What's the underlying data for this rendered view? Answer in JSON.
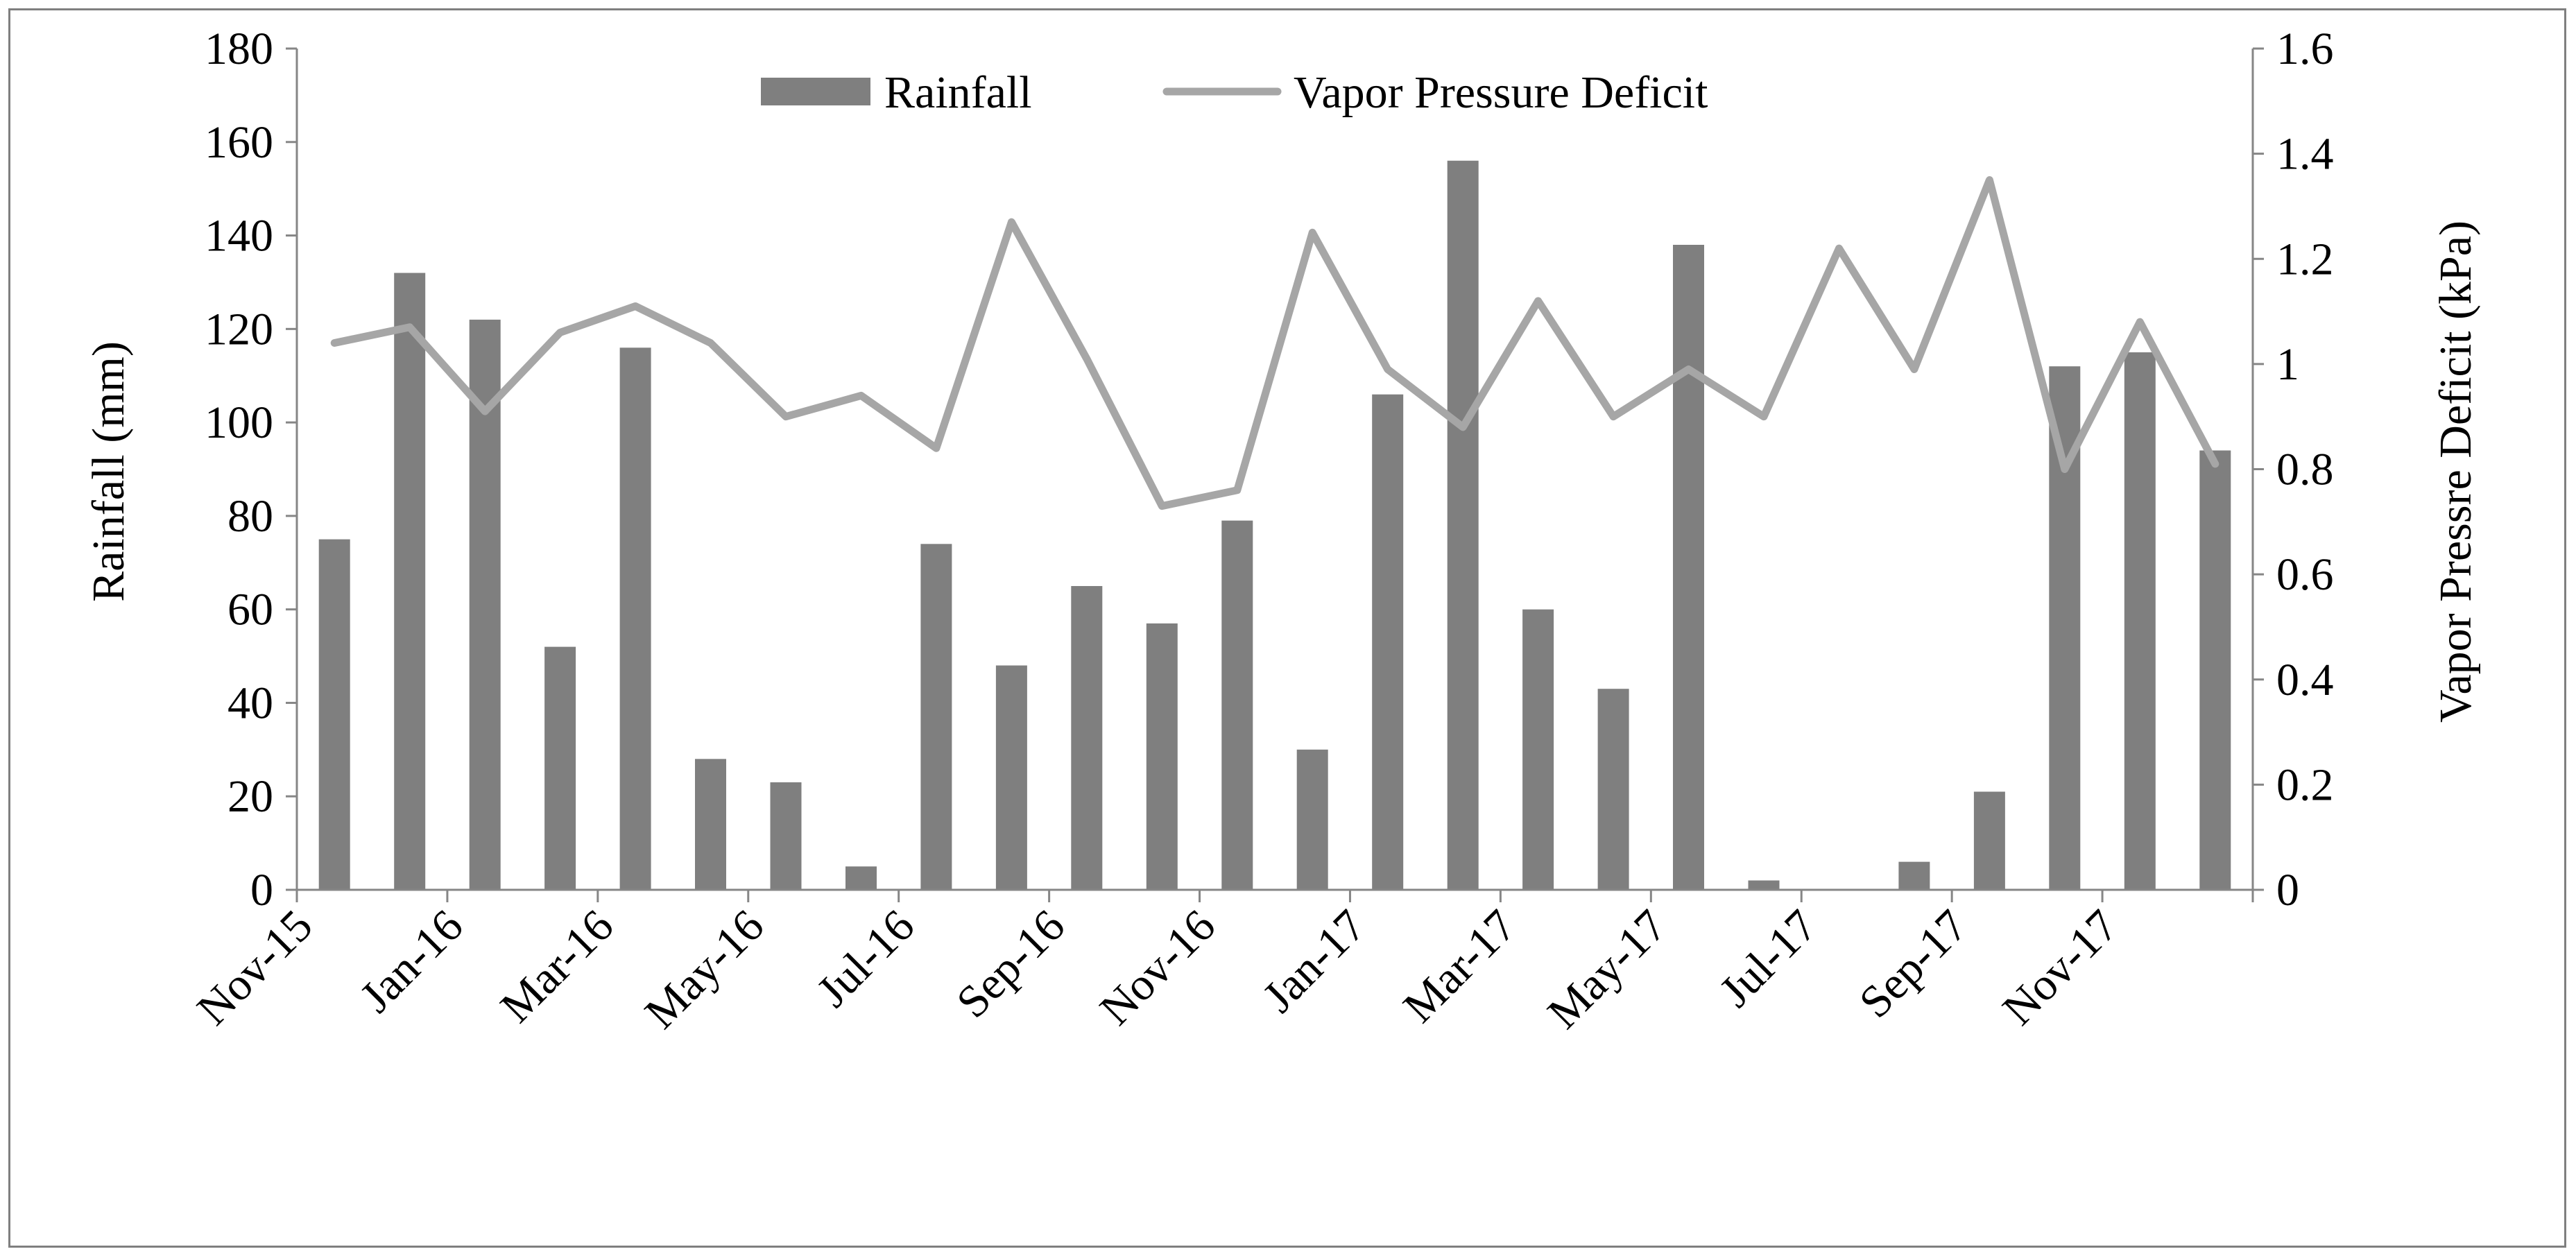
{
  "chart_data": {
    "type": "bar+line",
    "categories": [
      "Nov-15",
      "Dec-15",
      "Jan-16",
      "Feb-16",
      "Mar-16",
      "Apr-16",
      "May-16",
      "Jun-16",
      "Jul-16",
      "Aug-16",
      "Sep-16",
      "Oct-16",
      "Nov-16",
      "Dec-16",
      "Jan-17",
      "Feb-17",
      "Mar-17",
      "Apr-17",
      "May-17",
      "Jun-17",
      "Jul-17",
      "Aug-17",
      "Sep-17",
      "Oct-17",
      "Nov-17",
      "Dec-17"
    ],
    "x_tick_labels": [
      "Nov-15",
      "Jan-16",
      "Mar-16",
      "May-16",
      "Jul-16",
      "Sep-16",
      "Nov-16",
      "Jan-17",
      "Mar-17",
      "May-17",
      "Jul-17",
      "Sep-17",
      "Nov-17"
    ],
    "series": [
      {
        "name": "Rainfall",
        "kind": "bar",
        "axis": "left",
        "color": "#7f7f7f",
        "values": [
          75,
          132,
          122,
          52,
          116,
          28,
          23,
          5,
          74,
          48,
          65,
          57,
          79,
          30,
          106,
          156,
          60,
          43,
          138,
          2,
          0,
          6,
          21,
          112,
          115,
          94
        ]
      },
      {
        "name": "Vapor Pressure Deficit",
        "kind": "line",
        "axis": "right",
        "color": "#a6a6a6",
        "values": [
          1.04,
          1.07,
          0.91,
          1.06,
          1.11,
          1.04,
          0.9,
          0.94,
          0.84,
          1.27,
          1.01,
          0.73,
          0.76,
          1.25,
          0.99,
          0.88,
          1.12,
          0.9,
          0.99,
          0.9,
          1.22,
          0.99,
          1.35,
          0.8,
          1.08,
          0.81
        ]
      }
    ],
    "ylabel": "Rainfall (mm)",
    "y2label": "Vapor Pressre Deficit (kPa)",
    "ylim": [
      0,
      180
    ],
    "y_ticks": [
      0,
      20,
      40,
      60,
      80,
      100,
      120,
      140,
      160,
      180
    ],
    "y2lim": [
      0,
      1.6
    ],
    "y2_ticks": [
      "0",
      "0.2",
      "0.4",
      "0.6",
      "0.8",
      "1",
      "1.2",
      "1.4",
      "1.6"
    ],
    "legend": {
      "position": "top-center",
      "entries": [
        "Rainfall",
        "Vapor Pressure Deficit"
      ]
    },
    "grid": false,
    "axis_color": "#868686"
  }
}
